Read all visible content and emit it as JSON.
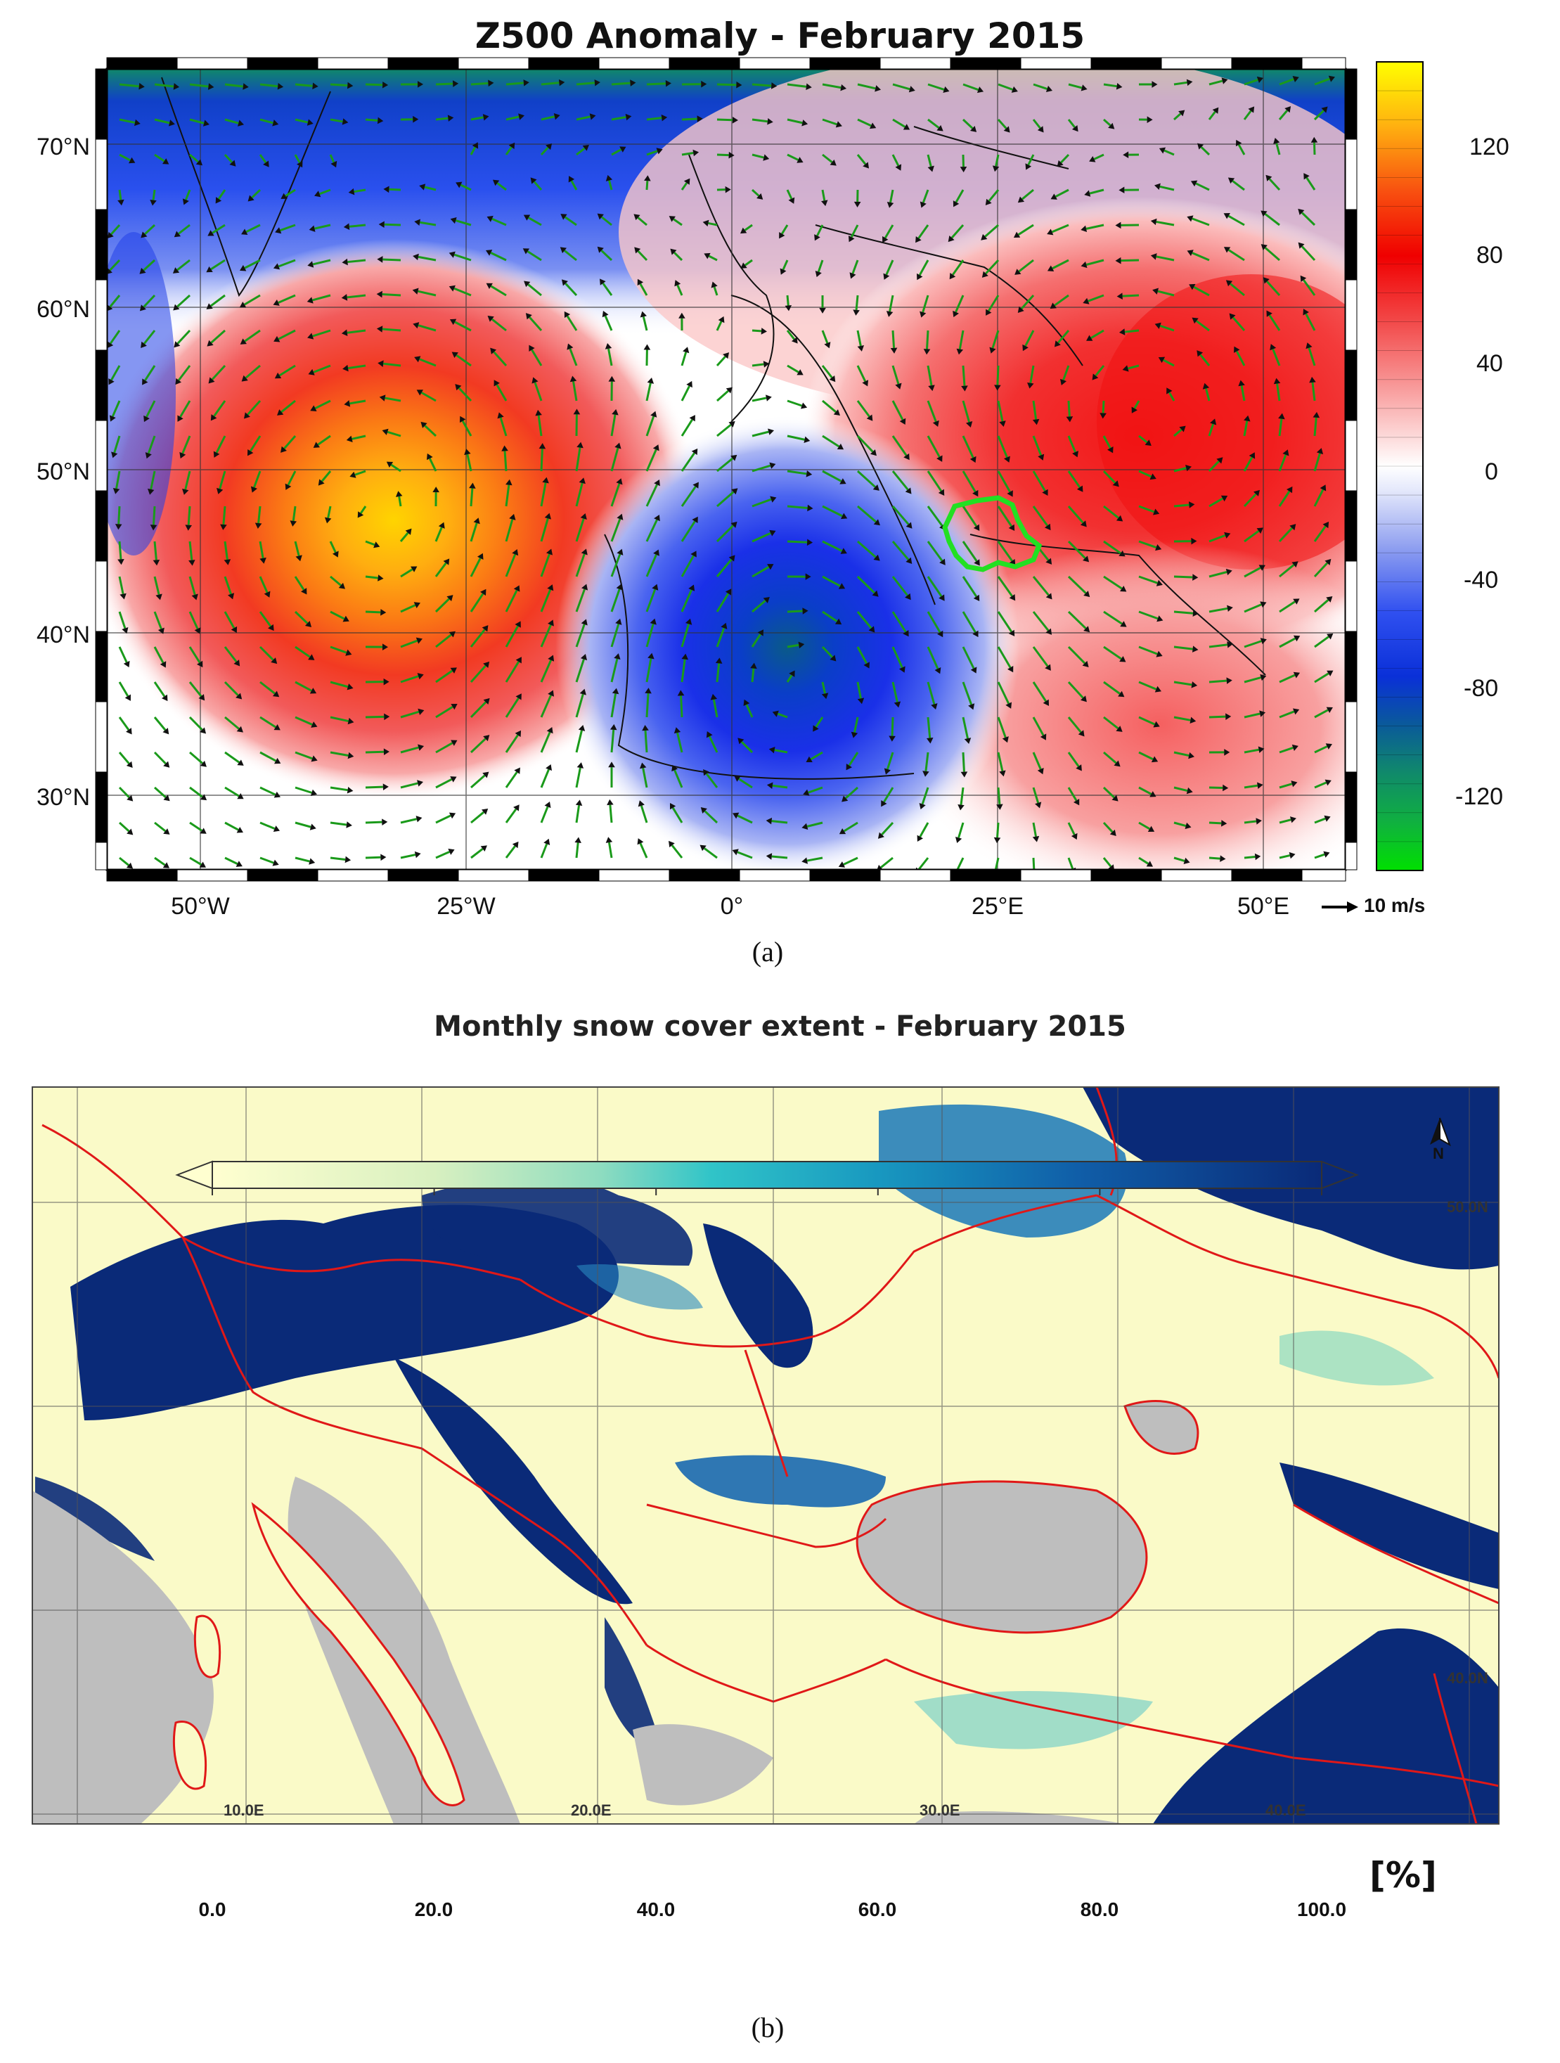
{
  "panel_a": {
    "title": "Z500 Anomaly - February 2015",
    "lat_labels": [
      "70°N",
      "60°N",
      "50°N",
      "40°N",
      "30°N"
    ],
    "lon_labels": [
      "50°W",
      "25°W",
      "0°",
      "25°E",
      "50°E"
    ],
    "colorbar": {
      "ticks": [
        "120",
        "80",
        "40",
        "0",
        "-40",
        "-80",
        "-120"
      ],
      "range": [
        -140,
        140
      ],
      "colors_low_to_high": [
        "#00e000",
        "#10b040",
        "#109060",
        "#106890",
        "#0a40c8",
        "#0018e8",
        "#2040f0",
        "#4a64f0",
        "#7088f0",
        "#98a8f4",
        "#c0c8f8",
        "#e4e8fb",
        "#ffffff",
        "#fde0e0",
        "#fbbcbc",
        "#f89898",
        "#f57070",
        "#f24848",
        "#ef2a2a",
        "#f00000",
        "#f43010",
        "#f85010",
        "#fb7010",
        "#fd9010",
        "#ffb010",
        "#ffd000",
        "#ffff00"
      ]
    },
    "reference_vector": "10 m/s",
    "panel_label": "(a)",
    "highlight_color": "#22e022",
    "vector_color": "#1a9a1a"
  },
  "panel_b": {
    "title": "Monthly snow cover extent - February 2015",
    "lon_labels": [
      "10.0E",
      "20.0E",
      "30.0E",
      "40.0E"
    ],
    "lat_labels": [
      "50.0N",
      "40.0N"
    ],
    "north_arrow": "N",
    "colorbar": {
      "ticks": [
        "0.0",
        "20.0",
        "40.0",
        "60.0",
        "80.0",
        "100.0"
      ],
      "unit": "[%]",
      "colors_low_to_high": [
        "#ffffd0",
        "#e0f4c0",
        "#a8e4c0",
        "#40c8c8",
        "#1898c0",
        "#1060a8",
        "#0a2a78"
      ]
    },
    "border_color": "#e01818",
    "water_color": "#bebebe",
    "panel_label": "(b)"
  }
}
